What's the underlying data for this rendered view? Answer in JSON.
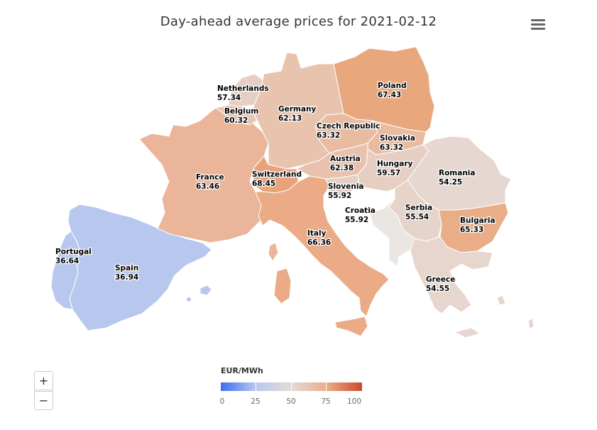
{
  "title": "Day-ahead average prices for 2021-02-12",
  "menu_icon": "hamburger-menu-icon",
  "zoom": {
    "in_label": "+",
    "out_label": "−"
  },
  "legend": {
    "title": "EUR/MWh",
    "ticks": [
      "0",
      "25",
      "50",
      "75",
      "100"
    ],
    "min": 0,
    "max": 100,
    "colors": [
      "#3e6df0",
      "#b8c8ee",
      "#e2dcd8",
      "#e8ac88",
      "#cc4a2c"
    ]
  },
  "countries": [
    {
      "name": "Netherlands",
      "value": "57.34"
    },
    {
      "name": "Belgium",
      "value": "60.32"
    },
    {
      "name": "Germany",
      "value": "62.13"
    },
    {
      "name": "Poland",
      "value": "67.43"
    },
    {
      "name": "Czech Republic",
      "value": "63.32"
    },
    {
      "name": "Slovakia",
      "value": "63.32"
    },
    {
      "name": "France",
      "value": "63.46"
    },
    {
      "name": "Switzerland",
      "value": "68.45"
    },
    {
      "name": "Austria",
      "value": "62.38"
    },
    {
      "name": "Hungary",
      "value": "59.57"
    },
    {
      "name": "Romania",
      "value": "54.25"
    },
    {
      "name": "Slovenia",
      "value": "55.92"
    },
    {
      "name": "Croatia",
      "value": "55.92"
    },
    {
      "name": "Serbia",
      "value": "55.54"
    },
    {
      "name": "Bulgaria",
      "value": "65.33"
    },
    {
      "name": "Italy",
      "value": "66.36"
    },
    {
      "name": "Portugal",
      "value": "36.64"
    },
    {
      "name": "Spain",
      "value": "36.94"
    },
    {
      "name": "Greece",
      "value": "54.55"
    }
  ]
}
